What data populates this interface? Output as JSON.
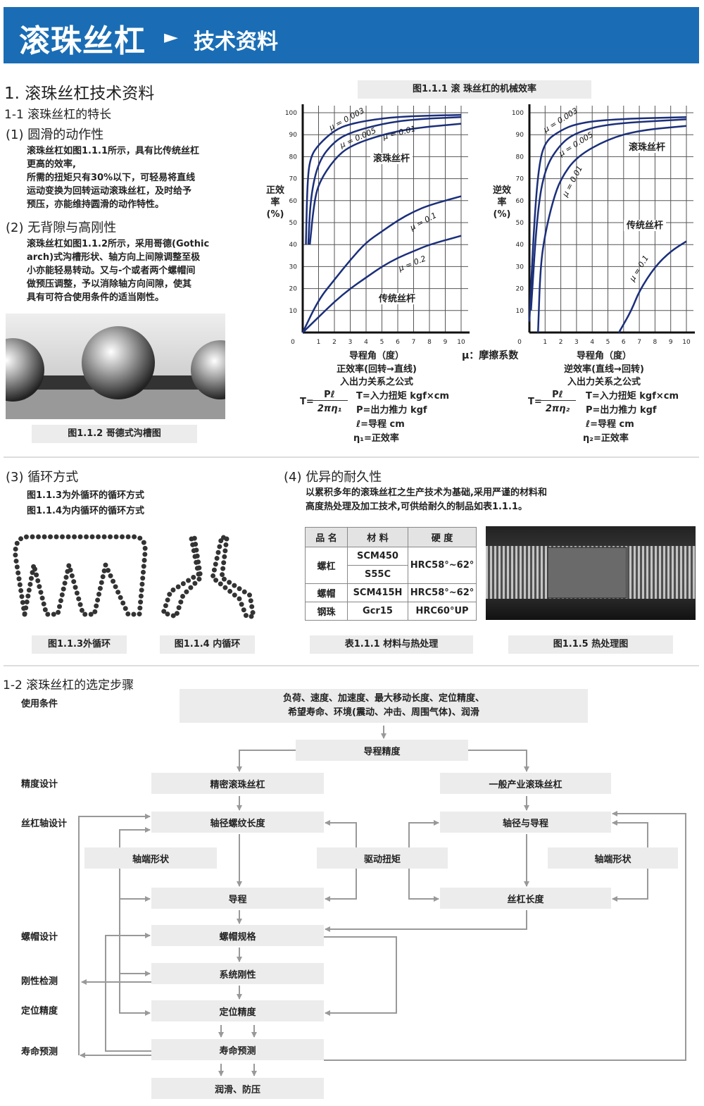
{
  "header": {
    "title": "滚珠丝杠",
    "arrow_icon": "triangle-right",
    "subtitle": "技术资料",
    "bg_color": "#1a6db5"
  },
  "section1": {
    "title": "1. 滚珠丝杠技术资料",
    "sub1": "1-1 滚珠丝杠的特长",
    "p1_title": "(1) 圆滑的动作性",
    "p1_lines": [
      "滚珠丝杠如图1.1.1所示，具有比传统丝杠",
      "更高的效率,",
      "所需的扭矩只有30%以下，可轻易将直线",
      "运动变换为回转运动滚珠丝杠，及时给予",
      "预压，亦能维持圆滑的动作特性。"
    ],
    "p2_title": "(2) 无背隙与高刚性",
    "p2_lines": [
      "滚珠丝杠如图1.1.2所示，采用哥德(Gothic",
      "arch)式沟槽形状、轴方向上间隙调整至极",
      "小亦能轻易转动。又与-个或者两个螺帽间",
      "做预压调整，予以消除轴方向间隙，使其",
      "具有可符合使用条件的适当刚性。"
    ],
    "fig112_caption": "图1.1.2 哥德式沟槽图"
  },
  "fig111": {
    "caption": "图1.1.1 滚 珠丝杠的机械效率",
    "mu_legend": "μ：摩擦系数"
  },
  "chart_data": [
    {
      "type": "line",
      "title": "",
      "ylabel": "正效率(%)",
      "xlabel": "导程角（度）",
      "subtitle": "正效率(回转→直线)",
      "xlim": [
        0,
        10
      ],
      "ylim": [
        0,
        100
      ],
      "grid": true,
      "xticks": [
        "0",
        "1",
        "2",
        "3",
        "4",
        "5",
        "6",
        "7",
        "8",
        "9",
        "10"
      ],
      "yticks": [
        "10",
        "20",
        "30",
        "40",
        "50",
        "60",
        "70",
        "80",
        "90",
        "100"
      ],
      "annotations": [
        "滚珠丝杆",
        "传统丝杆"
      ],
      "series": [
        {
          "name": "μ = 0.003",
          "color": "#1b2f7a",
          "points": [
            [
              0.2,
              40
            ],
            [
              0.3,
              70
            ],
            [
              0.5,
              80
            ],
            [
              1,
              85.5
            ],
            [
              2,
              92
            ],
            [
              3,
              95
            ],
            [
              5,
              97.5
            ],
            [
              7,
              98.5
            ],
            [
              10,
              99
            ]
          ]
        },
        {
          "name": "μ = 0.005",
          "color": "#1b2f7a",
          "points": [
            [
              0.35,
              40
            ],
            [
              0.5,
              62
            ],
            [
              1,
              78
            ],
            [
              2,
              87
            ],
            [
              3,
              91
            ],
            [
              5,
              95
            ],
            [
              7,
              97
            ],
            [
              10,
              98
            ]
          ]
        },
        {
          "name": "μ = 0.01",
          "color": "#1b2f7a",
          "points": [
            [
              0.45,
              40
            ],
            [
              0.7,
              58
            ],
            [
              1,
              68
            ],
            [
              2,
              79
            ],
            [
              3,
              85
            ],
            [
              5,
              90
            ],
            [
              7,
              93
            ],
            [
              10,
              95
            ]
          ]
        },
        {
          "name": "μ = 0.1",
          "color": "#1b2f7a",
          "points": [
            [
              0,
              0
            ],
            [
              1,
              15
            ],
            [
              2,
              24
            ],
            [
              3,
              33
            ],
            [
              4,
              41
            ],
            [
              5,
              46
            ],
            [
              6,
              51
            ],
            [
              7,
              55
            ],
            [
              8,
              58
            ],
            [
              10,
              62
            ]
          ]
        },
        {
          "name": "μ = 0.2",
          "color": "#1b2f7a",
          "points": [
            [
              0,
              0
            ],
            [
              1,
              7
            ],
            [
              2,
              14
            ],
            [
              3,
              20
            ],
            [
              4,
              25
            ],
            [
              5,
              30
            ],
            [
              6,
              34
            ],
            [
              7,
              37
            ],
            [
              8,
              40
            ],
            [
              10,
              44
            ]
          ]
        }
      ]
    },
    {
      "type": "line",
      "title": "",
      "ylabel": "逆效率(%)",
      "xlabel": "导程角（度）",
      "subtitle": "逆效率(直线→回转)",
      "xlim": [
        0,
        10
      ],
      "ylim": [
        0,
        100
      ],
      "grid": true,
      "xticks": [
        "0",
        "1",
        "2",
        "3",
        "4",
        "5",
        "6",
        "7",
        "8",
        "9",
        "10"
      ],
      "yticks": [
        "10",
        "20",
        "30",
        "40",
        "50",
        "60",
        "70",
        "80",
        "90",
        "100"
      ],
      "annotations": [
        "滚珠丝杆",
        "传统丝杆"
      ],
      "series": [
        {
          "name": "μ = 0.003",
          "color": "#1b2f7a",
          "points": [
            [
              0,
              5
            ],
            [
              0.3,
              50
            ],
            [
              0.6,
              76
            ],
            [
              1,
              87
            ],
            [
              2,
              92
            ],
            [
              3,
              95
            ],
            [
              5,
              97
            ],
            [
              10,
              98
            ]
          ]
        },
        {
          "name": "μ = 0.005",
          "color": "#1b2f7a",
          "points": [
            [
              0.1,
              10
            ],
            [
              0.5,
              55
            ],
            [
              1,
              75
            ],
            [
              2,
              86
            ],
            [
              3,
              91
            ],
            [
              5,
              95
            ],
            [
              10,
              97
            ]
          ]
        },
        {
          "name": "μ = 0.01",
          "color": "#1b2f7a",
          "points": [
            [
              0.55,
              0
            ],
            [
              0.7,
              30
            ],
            [
              1,
              45
            ],
            [
              1.5,
              60
            ],
            [
              2,
              70
            ],
            [
              3,
              80
            ],
            [
              5,
              88
            ],
            [
              7,
              92
            ],
            [
              10,
              94
            ]
          ]
        },
        {
          "name": "μ = 0.1",
          "color": "#1b2f7a",
          "points": [
            [
              5.7,
              0
            ],
            [
              6.5,
              10
            ],
            [
              7,
              19
            ],
            [
              8,
              30
            ],
            [
              9,
              37
            ],
            [
              10,
              41.5
            ]
          ]
        }
      ]
    }
  ],
  "formulas": {
    "heading": "入出力关系之公式",
    "left": {
      "lhs": "T=",
      "num": "Pℓ",
      "den": "2πη₁",
      "defs": [
        "T=入力扭矩  kgf×cm",
        "P=出力推力  kgf",
        "ℓ=导程  cm",
        "η₁=正效率"
      ]
    },
    "right": {
      "lhs": "T=",
      "num": "Pℓ",
      "den": "2πη₂",
      "defs": [
        "T=入力扭矩  kgf×cm",
        "P=出力推力  kgf",
        "ℓ=导程  cm",
        "η₂=正效率"
      ]
    }
  },
  "section3": {
    "title": "(3) 循环方式",
    "lines": [
      "图1.1.3为外循环的循环方式",
      "图1.1.4为内循环的循环方式"
    ],
    "cap113": "图1.1.3外循环",
    "cap114": "图1.1.4 内循环"
  },
  "section4": {
    "title": "(4) 优异的耐久性",
    "lines": [
      "以累积多年的滚珠丝杠之生产技术为基础,采用严谨的材料和",
      "高度热处理及加工技术,可供给耐久的制品如表1.1.1。"
    ],
    "table": {
      "headers": [
        "品 名",
        "材 料",
        "硬 度"
      ],
      "rows": [
        {
          "name": "螺杠",
          "materials": [
            "SCM450",
            "S55C"
          ],
          "hardness": "HRC58°~62°"
        },
        {
          "name": "螺帽",
          "materials": [
            "SCM415H"
          ],
          "hardness": "HRC58°~62°"
        },
        {
          "name": "钢珠",
          "materials": [
            "Gcr15"
          ],
          "hardness": "HRC60°UP"
        }
      ]
    },
    "table_caption": "表1.1.1    材料与热处理",
    "photo_caption": "图1.1.5 热处理图"
  },
  "section12": {
    "title": "1-2 滚珠丝杠的选定步骤",
    "side_labels": [
      "使用条件",
      "精度设计",
      "丝杠轴设计",
      "螺帽设计",
      "刚性检测",
      "定位精度",
      "寿命预测"
    ],
    "conditions": [
      "负荷、速度、加速度、最大移动长度、定位精度、",
      "希望寿命、环境(震动、冲击、周围气体)、润滑"
    ],
    "boxes": {
      "lead_accuracy": "导程精度",
      "precision": "精密滚珠丝杠",
      "general": "一般产业滚珠丝杠",
      "shaft_thread": "轴径螺纹长度",
      "shaft_lead": "轴径与导程",
      "end_left": "轴端形状",
      "drive_torque": "驱动扭矩",
      "end_right": "轴端形状",
      "lead": "导程",
      "screw_length": "丝杠长度",
      "nut_spec": "螺帽规格",
      "rigidity": "系统刚性",
      "positioning": "定位精度",
      "life": "寿命预测",
      "lubrication": "润滑、防压"
    }
  }
}
